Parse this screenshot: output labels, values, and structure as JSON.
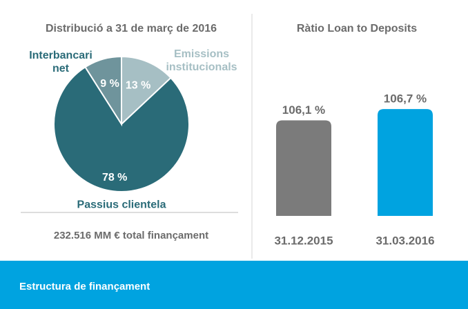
{
  "chart_data": [
    {
      "type": "pie",
      "title": "Distribució a 31 de març de 2016",
      "categories": [
        "Emissions institucionals",
        "Passius clientela",
        "Interbancari net"
      ],
      "values": [
        13,
        78,
        9
      ],
      "value_labels": [
        "13 %",
        "78 %",
        "9 %"
      ],
      "colors": [
        "#a6bfc4",
        "#2a6b78",
        "#6f949c"
      ],
      "caption": "232.516 MM € total finançament"
    },
    {
      "type": "bar",
      "title": "Ràtio Loan to Deposits",
      "categories": [
        "31.12.2015",
        "31.03.2016"
      ],
      "values": [
        106.1,
        106.7
      ],
      "value_labels": [
        "106,1 %",
        "106,7 %"
      ],
      "colors": [
        "#7b7b7b",
        "#00a3e0"
      ],
      "ylim": [
        101,
        107
      ]
    }
  ],
  "footer": {
    "title": "Estructura de finançament"
  }
}
